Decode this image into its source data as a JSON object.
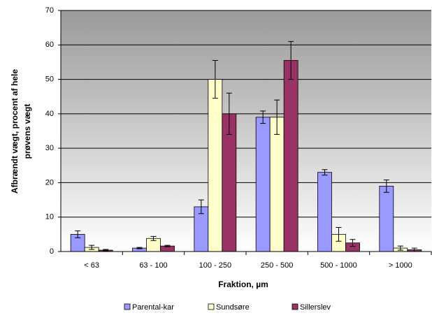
{
  "chart_data": {
    "type": "bar",
    "ylabel": [
      "Afbrændt vægt, procent af hele",
      "prøvens vægt"
    ],
    "xlabel": "Fraktion, µm",
    "categories": [
      "< 63",
      "63 - 100",
      "100 - 250",
      "250 - 500",
      "500 - 1000",
      "> 1000"
    ],
    "series": [
      {
        "name": "Parental-kar",
        "color": "#9999ff",
        "values": [
          5,
          1,
          13,
          39,
          23,
          19
        ],
        "errors": [
          1,
          0.2,
          2,
          1.8,
          0.8,
          1.8
        ]
      },
      {
        "name": "Sundsøre",
        "color": "#ffffcc",
        "values": [
          1.2,
          3.8,
          50,
          39,
          5,
          1
        ],
        "errors": [
          0.6,
          0.6,
          5.5,
          5,
          2,
          0.6
        ]
      },
      {
        "name": "Sillerslev",
        "color": "#993366",
        "values": [
          0.4,
          1.6,
          40,
          55.5,
          2.5,
          0.5
        ],
        "errors": [
          0.2,
          0.2,
          6,
          5.5,
          1,
          0.5
        ]
      }
    ],
    "ylim": [
      0,
      70
    ],
    "yticks": [
      0,
      10,
      20,
      30,
      40,
      50,
      60,
      70
    ],
    "grid": true
  }
}
